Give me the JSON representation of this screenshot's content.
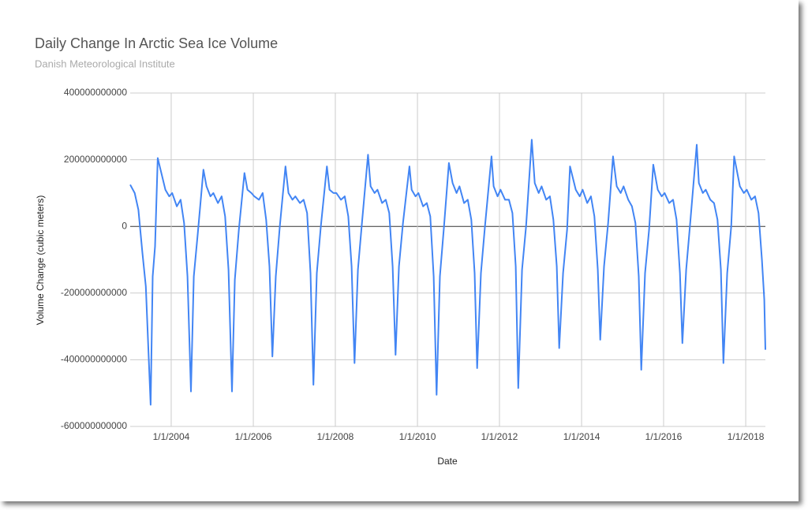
{
  "chart_data": {
    "type": "line",
    "title": "Daily Change In Arctic Sea Ice Volume",
    "subtitle": "Danish Meteorological Institute",
    "x_label": "Date",
    "y_label": "Volume Change (cubic meters)",
    "xlim": [
      "2003-01-01",
      "2018-06-25"
    ],
    "xticks": [
      {
        "value": "2004-01-01",
        "label": "1/1/2004"
      },
      {
        "value": "2006-01-01",
        "label": "1/1/2006"
      },
      {
        "value": "2008-01-01",
        "label": "1/1/2008"
      },
      {
        "value": "2010-01-01",
        "label": "1/1/2010"
      },
      {
        "value": "2012-01-01",
        "label": "1/1/2012"
      },
      {
        "value": "2014-01-01",
        "label": "1/1/2014"
      },
      {
        "value": "2016-01-01",
        "label": "1/1/2016"
      },
      {
        "value": "2018-01-01",
        "label": "1/1/2018"
      }
    ],
    "ylim": [
      -600000000000,
      400000000000
    ],
    "yticks": [
      -600000000000,
      -400000000000,
      -200000000000,
      0,
      200000000000,
      400000000000
    ],
    "grid": true,
    "x": [
      "2003-01-01",
      "2003-02-10",
      "2003-03-15",
      "2003-04-20",
      "2003-05-20",
      "2003-07-02",
      "2003-07-20",
      "2003-08-10",
      "2003-09-03",
      "2003-11-10",
      "2003-12-15",
      "2004-01-10",
      "2004-02-20",
      "2004-03-25",
      "2004-04-25",
      "2004-05-25",
      "2004-06-25",
      "2004-07-20",
      "2004-08-25",
      "2004-10-14",
      "2004-11-10",
      "2004-12-15",
      "2005-01-10",
      "2005-02-20",
      "2005-03-25",
      "2005-04-25",
      "2005-05-25",
      "2005-06-25",
      "2005-07-20",
      "2005-08-25",
      "2005-10-14",
      "2005-11-10",
      "2005-12-15",
      "2006-01-10",
      "2006-02-20",
      "2006-03-25",
      "2006-04-25",
      "2006-05-25",
      "2006-06-20",
      "2006-07-20",
      "2006-08-25",
      "2006-10-14",
      "2006-11-10",
      "2006-12-15",
      "2007-01-10",
      "2007-02-20",
      "2007-03-25",
      "2007-04-25",
      "2007-05-25",
      "2007-06-20",
      "2007-07-20",
      "2007-08-25",
      "2007-10-18",
      "2007-11-10",
      "2007-12-15",
      "2008-01-10",
      "2008-02-20",
      "2008-03-25",
      "2008-04-25",
      "2008-05-25",
      "2008-06-20",
      "2008-07-20",
      "2008-08-25",
      "2008-10-18",
      "2008-11-10",
      "2008-12-15",
      "2009-01-10",
      "2009-02-20",
      "2009-03-25",
      "2009-04-25",
      "2009-05-25",
      "2009-06-20",
      "2009-07-20",
      "2009-08-25",
      "2009-10-22",
      "2009-11-10",
      "2009-12-15",
      "2010-01-10",
      "2010-02-20",
      "2010-03-25",
      "2010-04-25",
      "2010-05-25",
      "2010-06-20",
      "2010-07-20",
      "2010-08-25",
      "2010-10-08",
      "2010-11-10",
      "2010-12-15",
      "2011-01-10",
      "2011-02-20",
      "2011-03-25",
      "2011-04-25",
      "2011-05-25",
      "2011-06-16",
      "2011-07-20",
      "2011-08-25",
      "2011-10-22",
      "2011-11-10",
      "2011-12-15",
      "2012-01-10",
      "2012-02-20",
      "2012-03-25",
      "2012-04-25",
      "2012-05-25",
      "2012-06-16",
      "2012-07-20",
      "2012-08-25",
      "2012-10-14",
      "2012-11-10",
      "2012-12-15",
      "2013-01-10",
      "2013-02-20",
      "2013-03-25",
      "2013-04-25",
      "2013-05-25",
      "2013-06-16",
      "2013-07-20",
      "2013-08-25",
      "2013-09-20",
      "2013-11-10",
      "2013-12-15",
      "2014-01-10",
      "2014-02-20",
      "2014-03-25",
      "2014-04-25",
      "2014-05-25",
      "2014-06-16",
      "2014-07-20",
      "2014-08-25",
      "2014-10-08",
      "2014-11-10",
      "2014-12-15",
      "2015-01-10",
      "2015-02-20",
      "2015-03-25",
      "2015-04-25",
      "2015-05-25",
      "2015-06-16",
      "2015-07-20",
      "2015-08-25",
      "2015-10-01",
      "2015-11-10",
      "2015-12-15",
      "2016-01-10",
      "2016-02-20",
      "2016-03-25",
      "2016-04-25",
      "2016-05-25",
      "2016-06-16",
      "2016-07-20",
      "2016-08-25",
      "2016-10-22",
      "2016-11-10",
      "2016-12-15",
      "2017-01-10",
      "2017-02-20",
      "2017-03-25",
      "2017-04-25",
      "2017-05-25",
      "2017-06-16",
      "2017-07-20",
      "2017-08-25",
      "2017-09-20",
      "2017-11-10",
      "2017-12-15",
      "2018-01-10",
      "2018-02-20",
      "2018-03-25",
      "2018-04-25",
      "2018-05-25",
      "2018-06-15",
      "2018-06-25"
    ],
    "series": [
      {
        "color": "#4285f4",
        "values": [
          125000000000.0,
          100000000000.0,
          50000000000.0,
          -80000000000.0,
          -180000000000.0,
          -535000000000.0,
          -150000000000.0,
          -60000000000.0,
          205000000000.0,
          110000000000.0,
          90000000000.0,
          100000000000.0,
          60000000000.0,
          80000000000.0,
          10000000000.0,
          -150000000000.0,
          -495000000000.0,
          -150000000000.0,
          -20000000000.0,
          170000000000.0,
          120000000000.0,
          90000000000.0,
          100000000000.0,
          70000000000.0,
          90000000000.0,
          30000000000.0,
          -130000000000.0,
          -495000000000.0,
          -160000000000.0,
          -10000000000.0,
          160000000000.0,
          110000000000.0,
          100000000000.0,
          90000000000.0,
          80000000000.0,
          100000000000.0,
          20000000000.0,
          -120000000000.0,
          -390000000000.0,
          -150000000000.0,
          0,
          180000000000.0,
          100000000000.0,
          80000000000.0,
          90000000000.0,
          70000000000.0,
          80000000000.0,
          40000000000.0,
          -140000000000.0,
          -475000000000.0,
          -140000000000.0,
          0,
          180000000000.0,
          110000000000.0,
          100000000000.0,
          100000000000.0,
          80000000000.0,
          90000000000.0,
          30000000000.0,
          -120000000000.0,
          -410000000000.0,
          -130000000000.0,
          10000000000.0,
          215000000000.0,
          120000000000.0,
          100000000000.0,
          110000000000.0,
          70000000000.0,
          80000000000.0,
          40000000000.0,
          -120000000000.0,
          -385000000000.0,
          -120000000000.0,
          10000000000.0,
          180000000000.0,
          110000000000.0,
          90000000000.0,
          100000000000.0,
          60000000000.0,
          70000000000.0,
          30000000000.0,
          -150000000000.0,
          -505000000000.0,
          -150000000000.0,
          0,
          190000000000.0,
          130000000000.0,
          100000000000.0,
          120000000000.0,
          70000000000.0,
          80000000000.0,
          20000000000.0,
          -140000000000.0,
          -425000000000.0,
          -140000000000.0,
          0,
          210000000000.0,
          120000000000.0,
          90000000000.0,
          110000000000.0,
          80000000000.0,
          80000000000.0,
          40000000000.0,
          -120000000000.0,
          -485000000000.0,
          -130000000000.0,
          0,
          260000000000.0,
          130000000000.0,
          100000000000.0,
          120000000000.0,
          80000000000.0,
          90000000000.0,
          20000000000.0,
          -120000000000.0,
          -365000000000.0,
          -140000000000.0,
          -10000000000.0,
          180000000000.0,
          110000000000.0,
          90000000000.0,
          110000000000.0,
          70000000000.0,
          90000000000.0,
          30000000000.0,
          -130000000000.0,
          -340000000000.0,
          -120000000000.0,
          10000000000.0,
          210000000000.0,
          120000000000.0,
          100000000000.0,
          120000000000.0,
          80000000000.0,
          60000000000.0,
          10000000000.0,
          -150000000000.0,
          -430000000000.0,
          -140000000000.0,
          -10000000000.0,
          185000000000.0,
          110000000000.0,
          90000000000.0,
          100000000000.0,
          70000000000.0,
          80000000000.0,
          20000000000.0,
          -140000000000.0,
          -350000000000.0,
          -130000000000.0,
          10000000000.0,
          245000000000.0,
          130000000000.0,
          100000000000.0,
          110000000000.0,
          80000000000.0,
          70000000000.0,
          20000000000.0,
          -130000000000.0,
          -410000000000.0,
          -140000000000.0,
          0,
          210000000000.0,
          120000000000.0,
          100000000000.0,
          110000000000.0,
          80000000000.0,
          90000000000.0,
          40000000000.0,
          -100000000000.0,
          -220000000000.0,
          -370000000000.0
        ]
      }
    ]
  }
}
